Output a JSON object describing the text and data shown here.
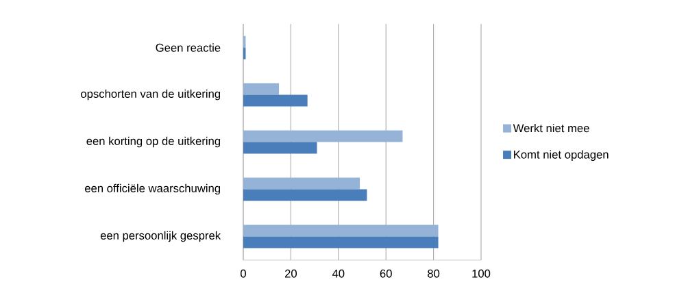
{
  "chart_data": {
    "type": "bar",
    "orientation": "horizontal",
    "categories": [
      "Geen reactie",
      "opschorten van de uitkering",
      "een korting op de uitkering",
      "een officiële waarschuwing",
      "een persoonlijk gesprek"
    ],
    "series": [
      {
        "name": "Werkt niet mee",
        "color": "#95b3d7",
        "values": [
          1,
          15,
          67,
          49,
          82
        ]
      },
      {
        "name": "Komt niet opdagen",
        "color": "#4a7ebb",
        "values": [
          1,
          27,
          31,
          52,
          82
        ]
      }
    ],
    "xlim": [
      0,
      100
    ],
    "xticks": [
      0,
      20,
      40,
      60,
      80,
      100
    ],
    "grid": "x",
    "legend": "right"
  }
}
